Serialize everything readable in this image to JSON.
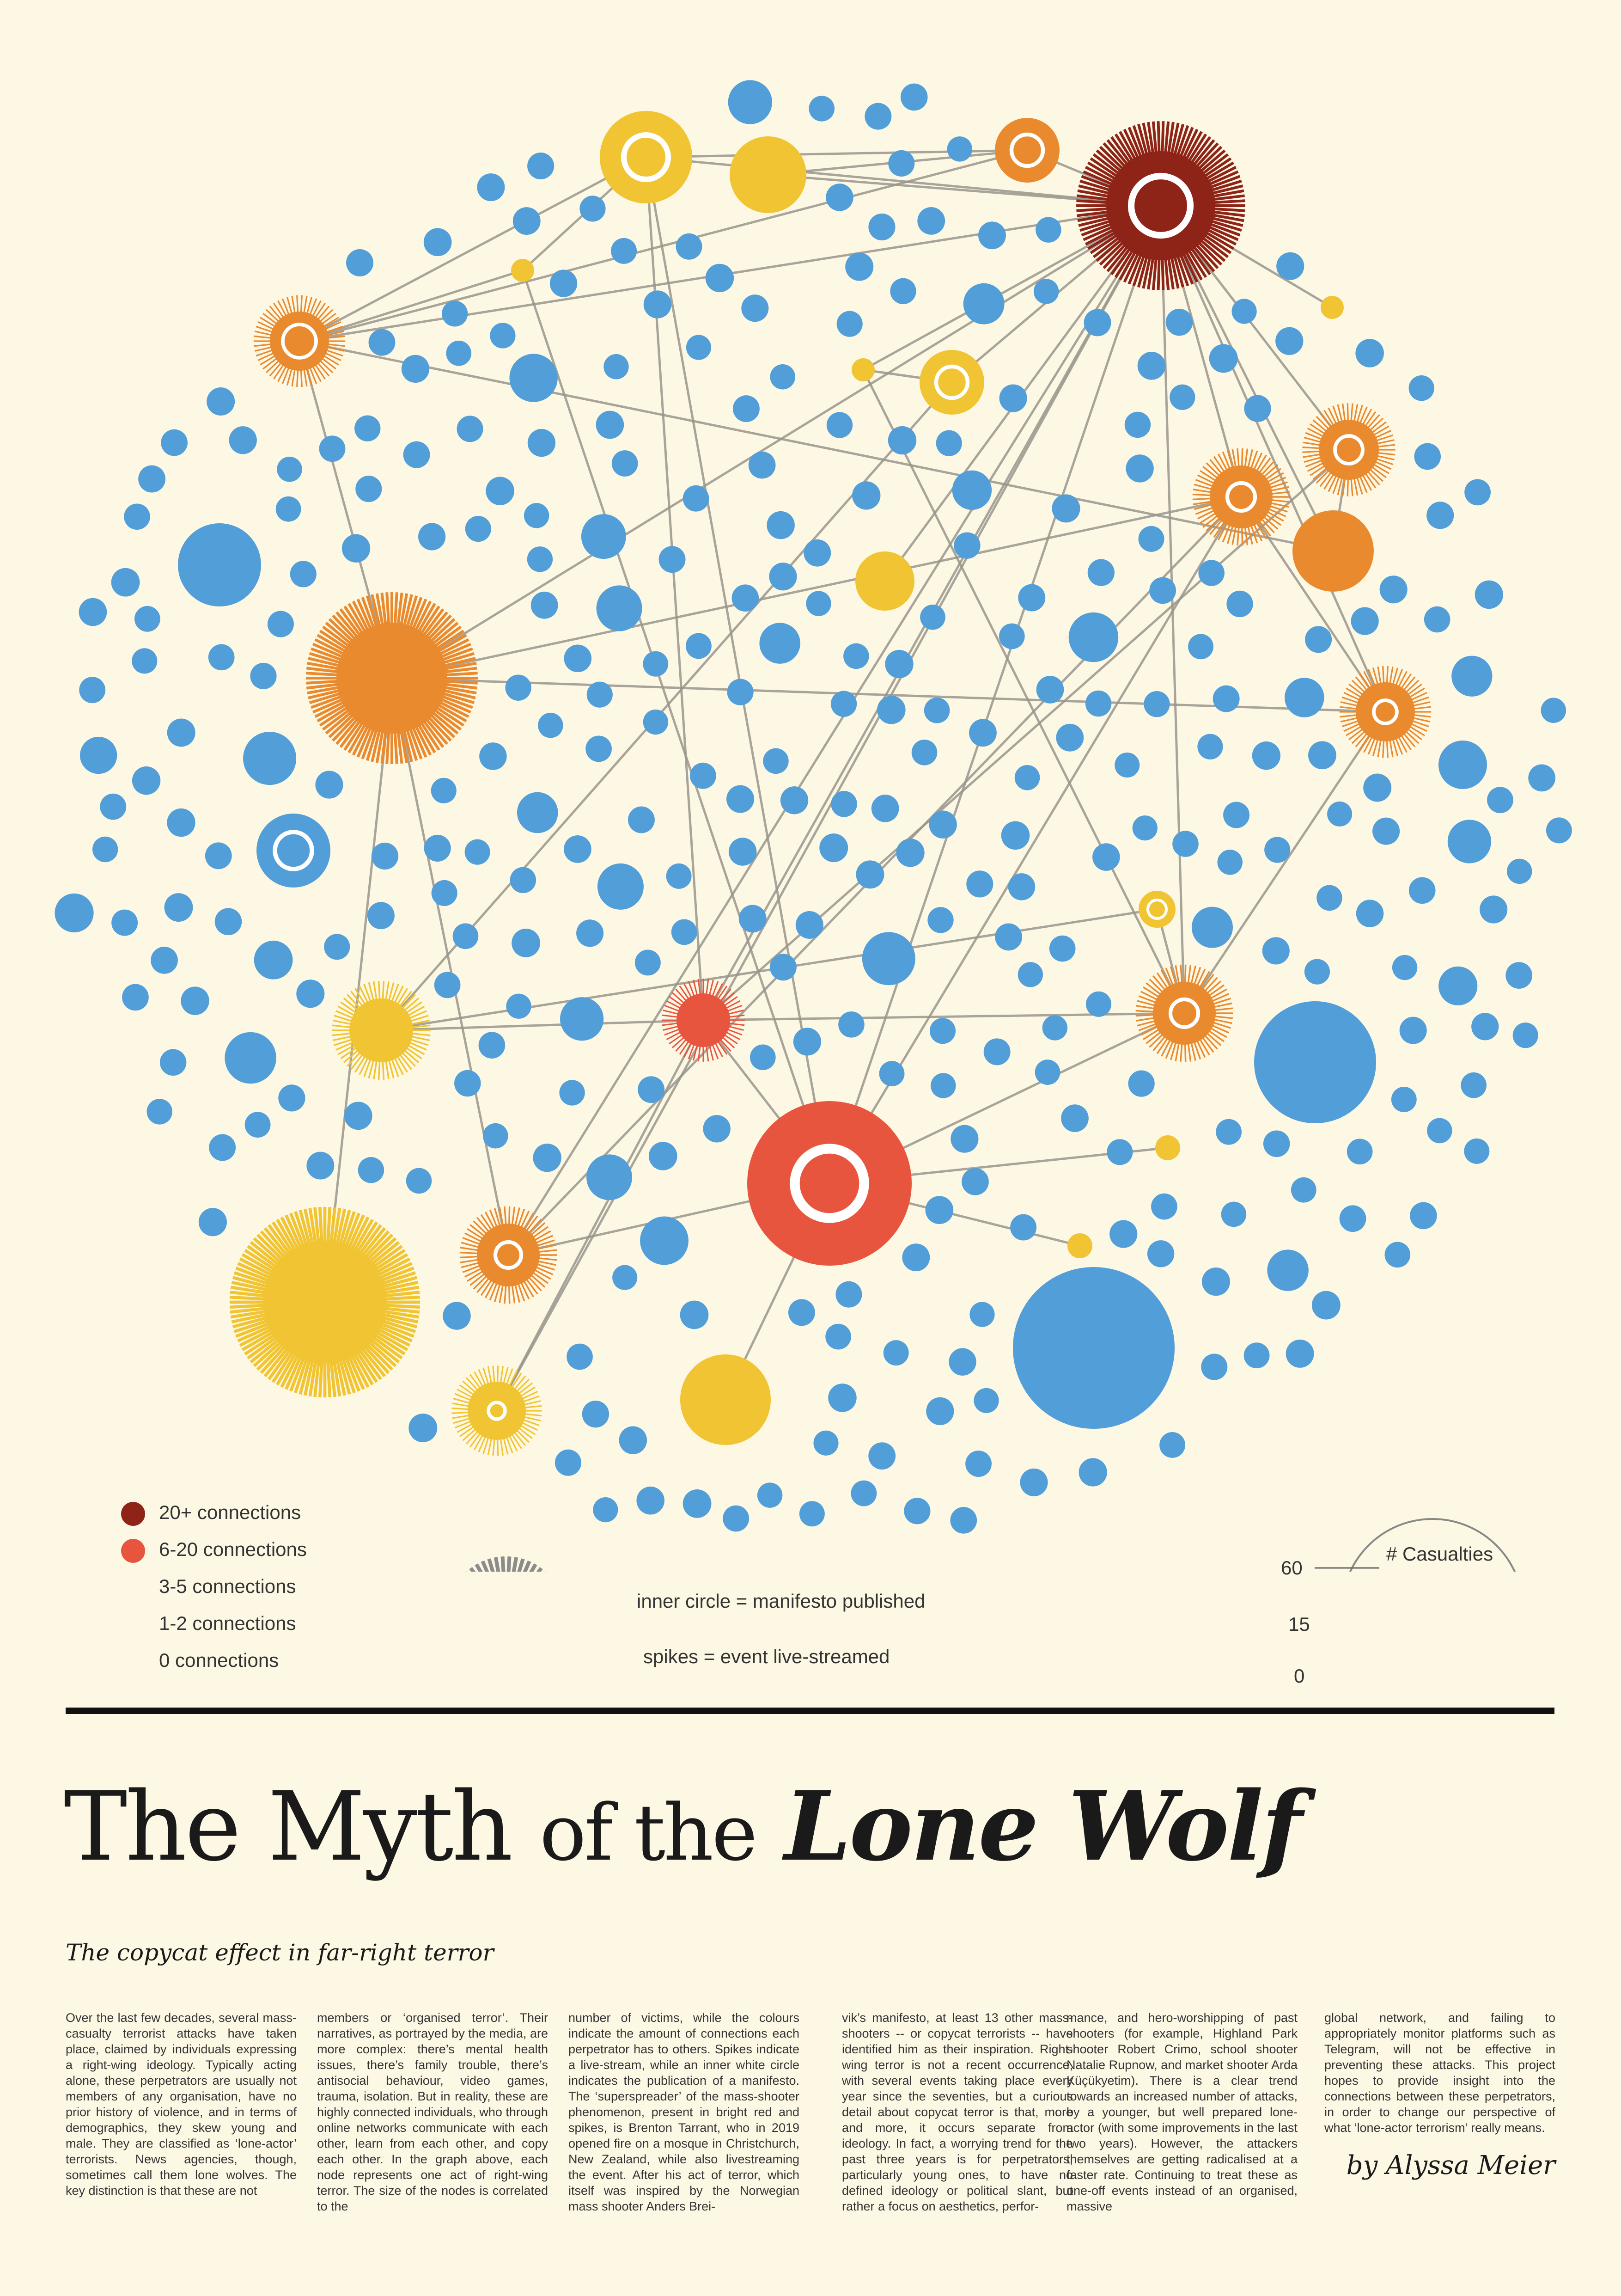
{
  "legend": {
    "items": [
      {
        "label": "20+ connections",
        "color": "#8e2418"
      },
      {
        "label": "6-20 connections",
        "color": "#e8553f"
      },
      {
        "label": "3-5 connections",
        "color": "#e98a2f"
      },
      {
        "label": "1-2 connections",
        "color": "#f1c433"
      },
      {
        "label": "0 connections",
        "color": "#519ed8"
      }
    ],
    "inner_circle_label": "inner circle = manifesto published",
    "spikes_label": "spikes = event live-streamed",
    "size_title": "# Casualties",
    "size_ticks": [
      "60",
      "15",
      "0"
    ]
  },
  "colors": {
    "background": "#fdf8e4",
    "blue": "#519ed8",
    "yellow": "#f1c433",
    "orange": "#e98a2f",
    "red": "#e8553f",
    "darkred": "#8e2418",
    "edge": "#9a958c"
  },
  "title": {
    "part1": "The Myth",
    "part2": "of the",
    "part3": "Lone Wolf"
  },
  "subtitle": "The copycat effect in far-right terror",
  "columns": [
    "Over the last few decades, several mass-casualty terrorist attacks have taken place, claimed by individuals expressing a right-wing ideology. Typically acting alone, these perpetrators are usually not members of any organisation, have no prior history of violence, and in terms of demographics, they skew young and male. They are classified as ‘lone-actor’ terrorists. News agencies, though, sometimes call them lone wolves. The key distinction is that these are not",
    "members or ‘organised terror’. Their narratives, as portrayed by the media, are more complex: there’s mental health issues, there’s family trouble, there’s antisocial behaviour, video games, trauma, isolation. But in reality, these are highly connected individuals, who through online networks communicate with each other, learn from each other, and copy each other. In the graph above, each node represents one act of right-wing terror. The size of the nodes is correlated to the",
    "number of victims, while the colours indicate the amount of connections each perpetrator has to others. Spikes indicate a live-stream, while an inner white circle indicates the publication of a manifesto. The ‘superspreader’ of the mass-shooter phenomenon, present in bright red and spikes, is Brenton Tarrant, who in 2019 opened fire on a mosque in Christchurch, New Zealand, while also livestreaming the event. After his act of terror, which itself was inspired by the Norwegian mass shooter Anders Brei-",
    "vik’s manifesto, at least 13 other mass-shooters -- or copycat terrorists -- have identified him as their inspiration. Right-wing terror is not a recent occurrence, with several events taking place every year since the seventies, but a curious detail about copycat terror is that, more and more, it occurs separate from ideology. In fact, a worrying trend for the past three years is for perpetrators, particularly young ones, to have no defined ideology or political slant, but rather a focus on aesthetics, perfor-",
    "mance, and hero-worshipping of past shooters (for example, Highland Park shooter Robert Crimo, school shooter Natalie Rupnow, and market shooter Arda Küçükyetim). There is a clear trend towards an increased number of attacks, by a younger, but well prepared lone-actor (with some improvements in the last two years). However, the attackers themselves are getting radicalised at a faster rate. Continuing to treat these as one-off events instead of an organised, massive",
    "global network, and failing to appropriately monitor platforms such as Telegram, will not be effective in preventing these attacks. This project hopes to provide insight into the connections between these perpetrators, in order to change our perspective of what ‘lone-actor terrorism’ really means."
  ],
  "byline": "by Alyssa Meier"
}
